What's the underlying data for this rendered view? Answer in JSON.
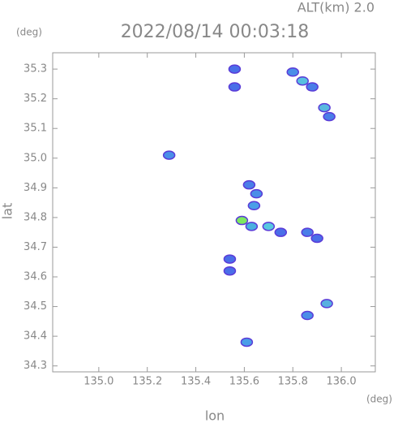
{
  "chart_data": {
    "type": "echo-map",
    "title": "2022/08/14 00:03:18",
    "altitude_label": "ALT(km)  2.0",
    "y_unit": "(deg)",
    "x_unit": "(deg)",
    "x_label": "lon",
    "y_label": "lat",
    "xlim": [
      134.81,
      136.14
    ],
    "ylim": [
      34.28,
      35.355
    ],
    "xticks": [
      {
        "value": 135,
        "label": "135.0"
      },
      135.2,
      135.4,
      135.6,
      135.8,
      {
        "value": 136,
        "label": "136.0"
      }
    ],
    "yticks": [
      34.3,
      34.4,
      34.5,
      34.6,
      34.7,
      34.8,
      34.9,
      {
        "value": 35,
        "label": "35.0"
      },
      35.1,
      35.2,
      35.3
    ],
    "x": [
      135.56,
      135.56,
      135.8,
      135.84,
      135.88,
      135.93,
      135.95,
      135.29,
      135.62,
      135.65,
      135.64,
      135.59,
      135.63,
      135.7,
      135.75,
      135.86,
      135.9,
      135.54,
      135.54,
      135.86,
      135.94,
      135.61
    ],
    "values": [
      35.3,
      35.24,
      35.29,
      35.26,
      35.24,
      35.17,
      35.14,
      35.01,
      34.91,
      34.88,
      34.84,
      34.79,
      34.77,
      34.77,
      34.75,
      34.75,
      34.73,
      34.66,
      34.62,
      34.47,
      34.51,
      34.38
    ],
    "colors": [
      "#4a6ee8",
      "#4a6ee8",
      "#4a8ee8",
      "#58c0e0",
      "#4a7ee8",
      "#58b8e0",
      "#4a7ee8",
      "#4a8ee8",
      "#4a7ee8",
      "#4a8ee8",
      "#4a9ee8",
      "#7ee860",
      "#4ab0e0",
      "#58c8e0",
      "#4a6ee8",
      "#4a7ee8",
      "#4a6ee8",
      "#4a6ee8",
      "#4a6ee8",
      "#4a8ee8",
      "#58b0e0",
      "#4a9ee8"
    ]
  }
}
